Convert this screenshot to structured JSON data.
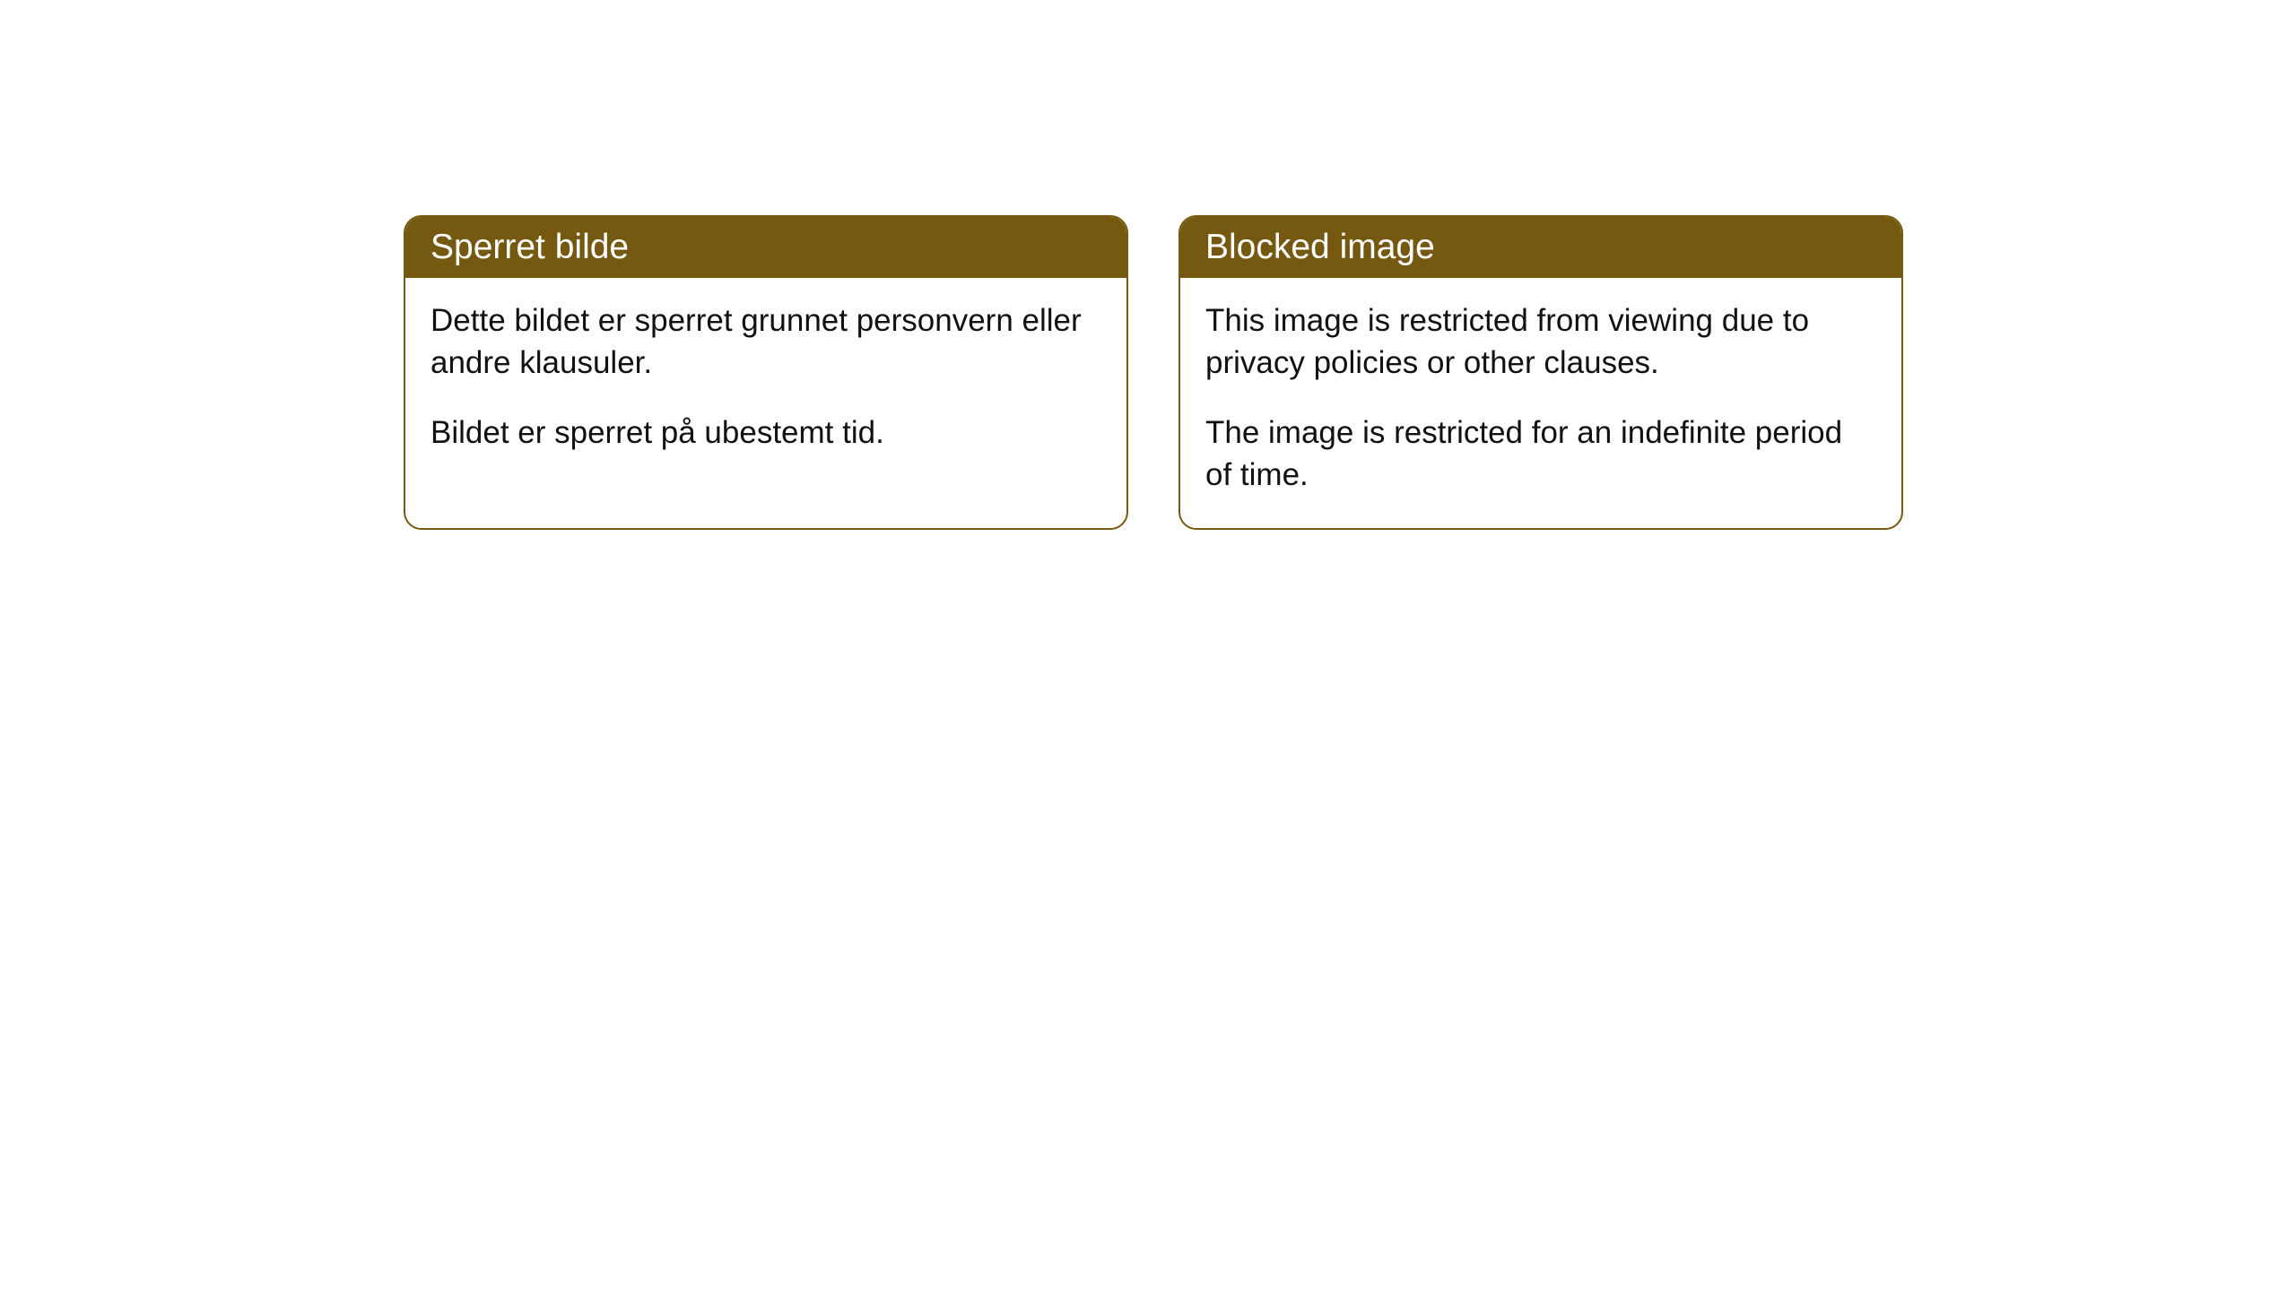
{
  "cards": [
    {
      "title": "Sperret bilde",
      "paragraph1": "Dette bildet er sperret grunnet personvern eller andre klausuler.",
      "paragraph2": "Bildet er sperret på ubestemt tid."
    },
    {
      "title": "Blocked image",
      "paragraph1": "This image is restricted from viewing due to privacy policies or other clauses.",
      "paragraph2": "The image is restricted for an indefinite period of time."
    }
  ],
  "styles": {
    "header_bg_color": "#765911",
    "header_text_color": "#ffffff",
    "border_color": "#765911",
    "body_text_color": "#111111",
    "background_color": "#ffffff",
    "border_radius": 20,
    "header_fontsize": 39,
    "body_fontsize": 35
  }
}
